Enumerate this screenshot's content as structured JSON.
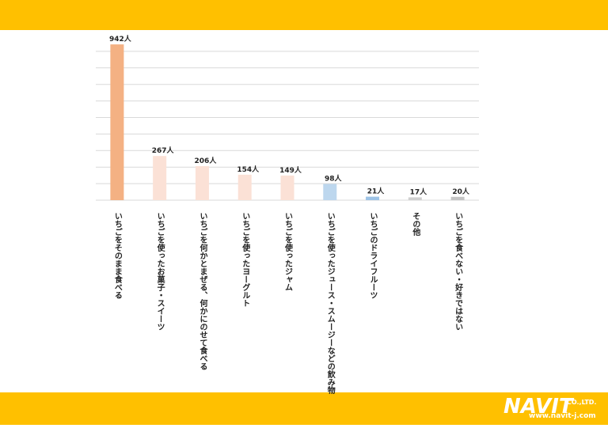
{
  "chart_data": {
    "type": "bar",
    "categories": [
      "いちごをそのまま食べる",
      "いちごを使ったお菓子・スイーツ",
      "いちごを何かとまぜる、何かにのせて食べる",
      "いちごを使ったヨーグルト",
      "いちごを使ったジャム",
      "いちごを使ったジュース・スムージーなどの飲み物",
      "いちごのドライフルーツ",
      "その他",
      "いちごを食べない・好きではない"
    ],
    "values": [
      942,
      267,
      206,
      154,
      149,
      98,
      21,
      17,
      20
    ],
    "value_labels": [
      "942人",
      "267人",
      "206人",
      "154人",
      "149人",
      "98人",
      "21人",
      "17人",
      "20人"
    ],
    "colors": [
      "#f4b183",
      "#fbe1d6",
      "#fbe1d6",
      "#fbe1d6",
      "#fbe1d6",
      "#bdd7ee",
      "#9dc3e6",
      "#d0d0d0",
      "#c4c4c4"
    ],
    "ylim": [
      0,
      1000
    ],
    "yticks": [
      0,
      100,
      200,
      300,
      400,
      500,
      600,
      700,
      800,
      900
    ],
    "grid": true
  },
  "logo": {
    "name": "NAVIT",
    "suffix": "CO.,LTD.",
    "url": "www.navit-j.com"
  }
}
